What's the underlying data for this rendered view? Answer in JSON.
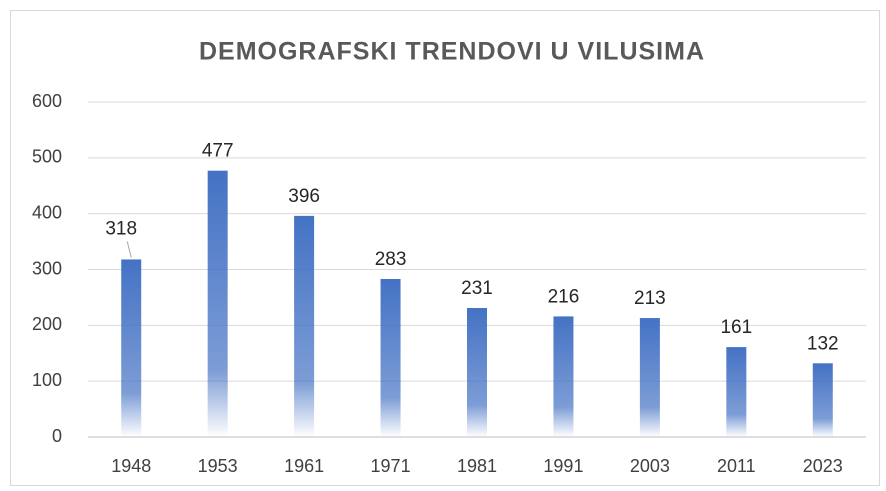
{
  "chart_data": {
    "type": "bar",
    "title": "DEMOGRAFSKI TRENDOVI U VILUSIMA",
    "categories": [
      "1948",
      "1953",
      "1961",
      "1971",
      "1981",
      "1991",
      "2003",
      "2011",
      "2023"
    ],
    "values": [
      318,
      477,
      396,
      283,
      231,
      216,
      213,
      161,
      132
    ],
    "color": "#4472c4",
    "ylim": [
      0,
      600
    ],
    "yticks": [
      0,
      100,
      200,
      300,
      400,
      500,
      600
    ],
    "grid": true
  }
}
